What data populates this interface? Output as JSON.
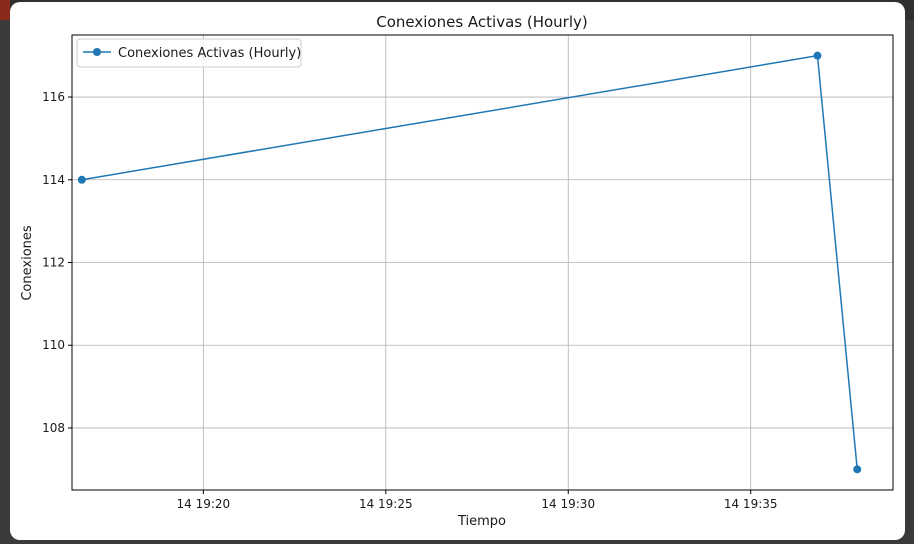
{
  "chart_data": {
    "type": "line",
    "title": "Conexiones Activas (Hourly)",
    "xlabel": "Tiempo",
    "ylabel": "Conexiones",
    "x_ticks": [
      "14 19:20",
      "14 19:25",
      "14 19:30",
      "14 19:35"
    ],
    "x_tick_minutes": [
      20,
      25,
      30,
      35
    ],
    "y_ticks": [
      108,
      110,
      112,
      114,
      116
    ],
    "xlim_minutes": [
      16.4,
      38.9
    ],
    "ylim": [
      106.5,
      117.5
    ],
    "grid": true,
    "legend_position": "top-left",
    "series": [
      {
        "name": "Conexiones Activas (Hourly)",
        "color": "#1f77b4",
        "marker": "circle",
        "x": [
          "14 19:16:40",
          "14 19:36:50",
          "14 19:37:55"
        ],
        "x_minutes": [
          16.67,
          36.83,
          37.92
        ],
        "values": [
          114,
          117,
          107
        ]
      }
    ]
  }
}
